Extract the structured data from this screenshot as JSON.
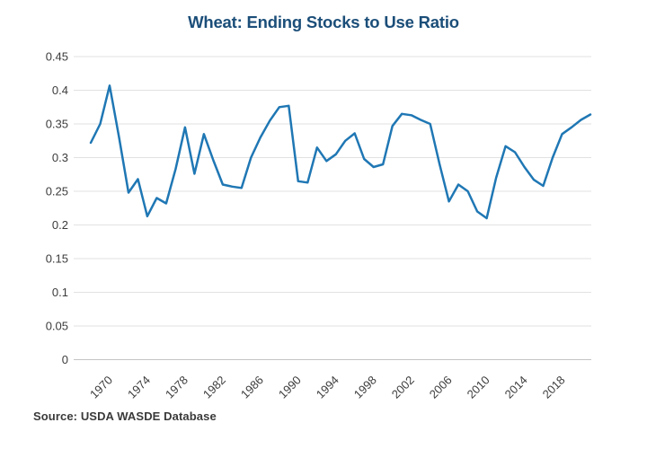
{
  "page": {
    "background": "#ffffff"
  },
  "chart_data": {
    "type": "line",
    "title": "Wheat: Ending Stocks to Use Ratio",
    "source_note": "Source: USDA WASDE Database",
    "xlabel": "",
    "ylabel": "",
    "legend": "none",
    "grid": "horizontal",
    "ylim": [
      0,
      0.45
    ],
    "x": [
      1968,
      1969,
      1970,
      1971,
      1972,
      1973,
      1974,
      1975,
      1976,
      1977,
      1978,
      1979,
      1980,
      1981,
      1982,
      1983,
      1984,
      1985,
      1986,
      1987,
      1988,
      1989,
      1990,
      1991,
      1992,
      1993,
      1994,
      1995,
      1996,
      1997,
      1998,
      1999,
      2000,
      2001,
      2002,
      2003,
      2004,
      2005,
      2006,
      2007,
      2008,
      2009,
      2010,
      2011,
      2012,
      2013,
      2014,
      2015,
      2016,
      2017,
      2018,
      2019,
      2020,
      2021
    ],
    "series": [
      {
        "name": "Wheat ending stocks to use ratio",
        "values": [
          0.322,
          0.35,
          0.407,
          0.33,
          0.248,
          0.268,
          0.213,
          0.24,
          0.232,
          0.283,
          0.345,
          0.276,
          0.335,
          0.296,
          0.26,
          0.257,
          0.255,
          0.3,
          0.33,
          0.355,
          0.375,
          0.377,
          0.265,
          0.263,
          0.315,
          0.295,
          0.305,
          0.325,
          0.336,
          0.298,
          0.286,
          0.29,
          0.347,
          0.365,
          0.363,
          0.356,
          0.35,
          0.29,
          0.235,
          0.26,
          0.25,
          0.22,
          0.21,
          0.27,
          0.317,
          0.308,
          0.286,
          0.267,
          0.258,
          0.3,
          0.335,
          0.345,
          0.356,
          0.364
        ]
      }
    ],
    "x_tick_labels": [
      "1970",
      "1974",
      "1978",
      "1982",
      "1986",
      "1990",
      "1994",
      "1998",
      "2002",
      "2006",
      "2010",
      "2014",
      "2018"
    ],
    "y_tick_labels": [
      "0.45",
      "0.4",
      "0.35",
      "0.3",
      "0.25",
      "0.2",
      "0.15",
      "0.1",
      "0.05",
      "0"
    ],
    "y_tick_values": [
      0.45,
      0.4,
      0.35,
      0.3,
      0.25,
      0.2,
      0.15,
      0.1,
      0.05,
      0
    ],
    "colors": {
      "line": "#1f77b4",
      "title": "#1b4e79",
      "axis_text": "#3c3c3c",
      "gridline": "#e2e2e2",
      "zero_line": "#c4c4c4",
      "source_text": "#3a3a3a"
    }
  }
}
